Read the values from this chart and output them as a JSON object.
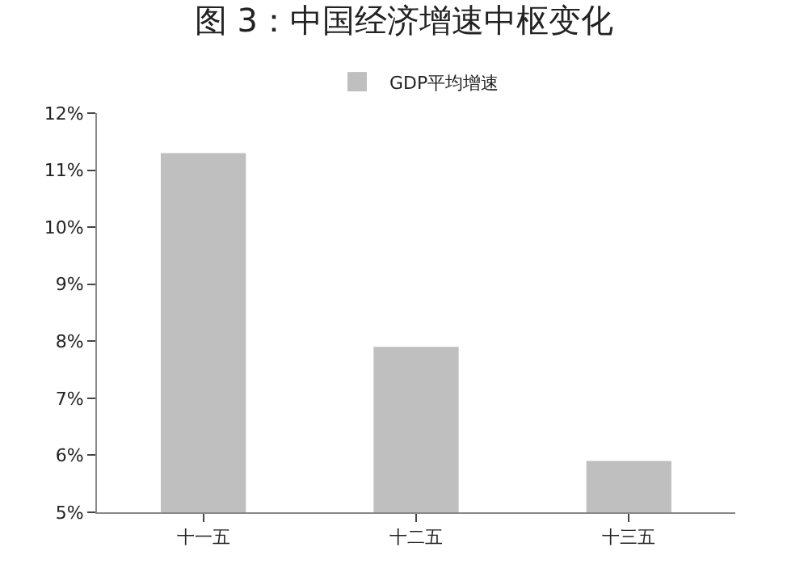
{
  "chart_data": {
    "type": "bar",
    "title": "图 3：中国经济增速中枢变化",
    "categories": [
      "十一五",
      "十二五",
      "十三五"
    ],
    "series": [
      {
        "name": "GDP平均增速",
        "color": "#bfbfbf",
        "values": [
          11.3,
          7.9,
          5.9
        ]
      }
    ],
    "ylim": [
      5,
      12
    ],
    "yticks": [
      {
        "value": 5,
        "label": "5%"
      },
      {
        "value": 6,
        "label": "6%"
      },
      {
        "value": 7,
        "label": "7%"
      },
      {
        "value": 8,
        "label": "8%"
      },
      {
        "value": 9,
        "label": "9%"
      },
      {
        "value": 10,
        "label": "10%"
      },
      {
        "value": 11,
        "label": "11%"
      },
      {
        "value": 12,
        "label": "12%"
      }
    ],
    "legend": "top"
  }
}
